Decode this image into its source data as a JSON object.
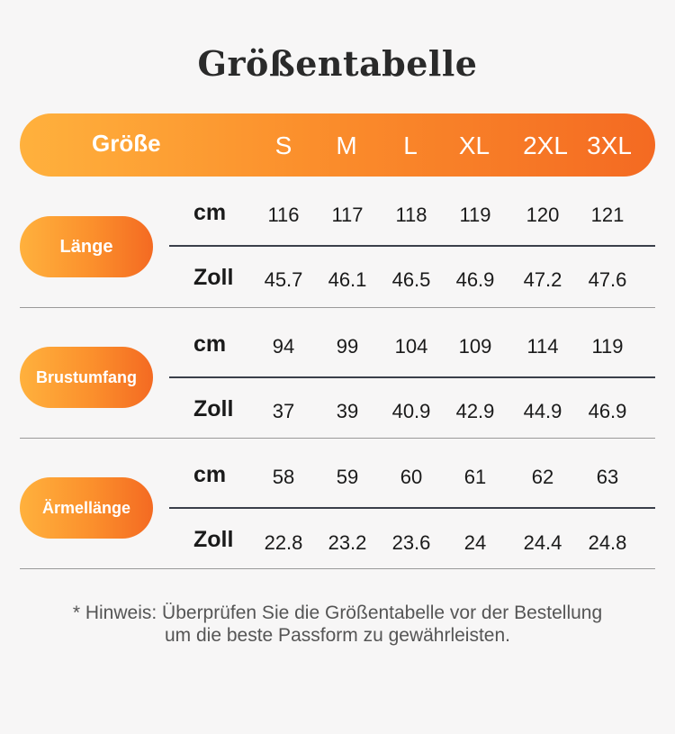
{
  "title": "Größentabelle",
  "header": {
    "label": "Größe",
    "sizes": [
      "S",
      "M",
      "L",
      "XL",
      "2XL",
      "3XL"
    ]
  },
  "rows": [
    {
      "label": "Länge",
      "cm_unit": "cm",
      "cm": [
        "116",
        "117",
        "118",
        "119",
        "120",
        "121"
      ],
      "inch_unit": "Zoll",
      "inch": [
        "45.7",
        "46.1",
        "46.5",
        "46.9",
        "47.2",
        "47.6"
      ]
    },
    {
      "label": "Brustumfang",
      "cm_unit": "cm",
      "cm": [
        "94",
        "99",
        "104",
        "109",
        "114",
        "119"
      ],
      "inch_unit": "Zoll",
      "inch": [
        "37",
        "39",
        "40.9",
        "42.9",
        "44.9",
        "46.9"
      ]
    },
    {
      "label": "Ärmellänge",
      "cm_unit": "cm",
      "cm": [
        "58",
        "59",
        "60",
        "61",
        "62",
        "63"
      ],
      "inch_unit": "Zoll",
      "inch": [
        "22.8",
        "23.2",
        "23.6",
        "24",
        "24.4",
        "24.8"
      ]
    }
  ],
  "note": {
    "line1": "* Hinweis: Überprüfen Sie die Größentabelle vor der Bestellung",
    "line2": "um die beste Passform zu gewährleisten."
  },
  "colors": {
    "gradient_start": "#ffb13d",
    "gradient_end": "#f46a22",
    "background": "#f7f6f6"
  }
}
